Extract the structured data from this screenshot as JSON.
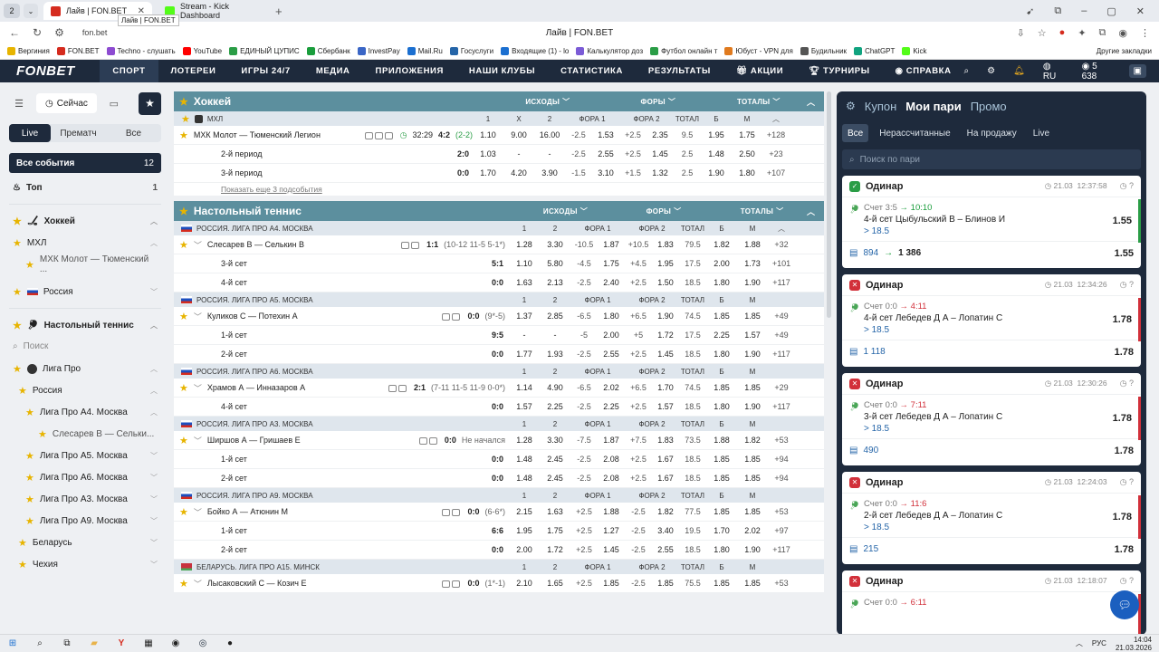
{
  "browser": {
    "workspace_num": "2",
    "tabs": [
      {
        "title": "Лайв | FON.BET",
        "active": true
      },
      {
        "title": "Stream - Kick Dashboard",
        "active": false
      }
    ],
    "tooltip": "Лайв | FON.BET",
    "url": "fon.bet",
    "page_title": "Лайв | FON.BET",
    "bookmarks": [
      "Вергиния",
      "FON.BET",
      "Techno - слушать",
      "YouTube",
      "ЕДИНЫЙ ЦУПИС",
      "Сбербанк",
      "InvestPay",
      "Mail.Ru",
      "Госуслуги",
      "Входящие (1) - lo",
      "Калькулятор доз",
      "Футбол онлайн т",
      "Юбуст - VPN для",
      "Будильник",
      "ChatGPT",
      "Kick"
    ],
    "bookmarks_other": "Другие закладки"
  },
  "site": {
    "logo": "FONBET",
    "nav": [
      "СПОРТ",
      "ЛОТЕРЕИ",
      "ИГРЫ 24/7",
      "МЕДИА",
      "ПРИЛОЖЕНИЯ",
      "НАШИ КЛУБЫ",
      "СТАТИСТИКА",
      "РЕЗУЛЬТАТЫ",
      "АКЦИИ",
      "ТУРНИРЫ",
      "СПРАВКА"
    ],
    "lang": "RU",
    "balance": "5 638"
  },
  "sidebar": {
    "now_label": "Сейчас",
    "tabs": [
      "Live",
      "Прематч",
      "Все"
    ],
    "all_events": {
      "label": "Все события",
      "count": "12"
    },
    "top": {
      "label": "Топ",
      "count": "1"
    },
    "hockey": "Хоккей",
    "khl": "МХЛ",
    "khl_match": "МХК Молот — Тюменский ...",
    "russia": "Россия",
    "tennis": "Настольный теннис",
    "search_placeholder": "Поиск",
    "liga_pro": "Лига Про",
    "russia2": "Россия",
    "leagues": [
      "Лига Про А4. Москва",
      "Лига Про А5. Москва",
      "Лига Про А6. Москва",
      "Лига Про А3. Москва",
      "Лига Про А9. Москва"
    ],
    "sub_match": "Слесарев В — Сельки...",
    "belarus": "Беларусь",
    "czech": "Чехия"
  },
  "hockey": {
    "title": "Хоккей",
    "cols": [
      "ИСХОДЫ",
      "ФОРЫ",
      "ТОТАЛЫ"
    ],
    "league": {
      "name": "МХЛ",
      "heads": [
        "1",
        "X",
        "2",
        "ФОРА 1",
        "",
        "ФОРА 2",
        "",
        "ТОТАЛ",
        "Б",
        "М"
      ]
    },
    "rows": [
      {
        "name": "МХК Молот — Тюменский Легион",
        "time": "32:29",
        "score": "4:2",
        "extra": "(2-2)",
        "odds": [
          "1.10",
          "9.00",
          "16.00",
          "-2.5",
          "1.53",
          "+2.5",
          "2.35",
          "9.5",
          "1.95",
          "1.75"
        ],
        "more": "+128"
      },
      {
        "name": "2-й период",
        "score": "2:0",
        "odds": [
          "1.03",
          "-",
          "-",
          "-2.5",
          "2.55",
          "+2.5",
          "1.45",
          "2.5",
          "1.48",
          "2.50"
        ],
        "more": "+23"
      },
      {
        "name": "3-й период",
        "score": "0:0",
        "odds": [
          "1.70",
          "4.20",
          "3.90",
          "-1.5",
          "3.10",
          "+1.5",
          "1.32",
          "2.5",
          "1.90",
          "1.80"
        ],
        "more": "+107"
      }
    ],
    "more_link": "Показать еще 3 подсобытия"
  },
  "tennis": {
    "title": "Настольный теннис",
    "cols": [
      "ИСХОДЫ",
      "ФОРЫ",
      "ТОТАЛЫ"
    ],
    "heads": [
      "1",
      "2",
      "ФОРА 1",
      "",
      "ФОРА 2",
      "",
      "ТОТАЛ",
      "Б",
      "М"
    ],
    "leagues": [
      {
        "name": "РОССИЯ. ЛИГА ПРО А4. МОСКВА",
        "flag": "ru",
        "rows": [
          {
            "name": "Слесарев В — Селькин В",
            "score": "1:1",
            "extra": "(10-12 11-5 5-1*)",
            "odds": [
              "1.28",
              "3.30",
              "-10.5",
              "1.87",
              "+10.5",
              "1.83",
              "79.5",
              "1.82",
              "1.88"
            ],
            "more": "+32",
            "main": true
          },
          {
            "name": "3-й сет",
            "score": "5:1",
            "odds": [
              "1.10",
              "5.80",
              "-4.5",
              "1.75",
              "+4.5",
              "1.95",
              "17.5",
              "2.00",
              "1.73"
            ],
            "more": "+101"
          },
          {
            "name": "4-й сет",
            "score": "0:0",
            "odds": [
              "1.63",
              "2.13",
              "-2.5",
              "2.40",
              "+2.5",
              "1.50",
              "18.5",
              "1.80",
              "1.90"
            ],
            "more": "+117"
          }
        ]
      },
      {
        "name": "РОССИЯ. ЛИГА ПРО А5. МОСКВА",
        "flag": "ru",
        "rows": [
          {
            "name": "Куликов С — Потехин А",
            "score": "0:0",
            "extra": "(9*-5)",
            "odds": [
              "1.37",
              "2.85",
              "-6.5",
              "1.80",
              "+6.5",
              "1.90",
              "74.5",
              "1.85",
              "1.85"
            ],
            "more": "+49",
            "main": true
          },
          {
            "name": "1-й сет",
            "score": "9:5",
            "odds": [
              "-",
              "-",
              "-5",
              "2.00",
              "+5",
              "1.72",
              "17.5",
              "2.25",
              "1.57"
            ],
            "more": "+49"
          },
          {
            "name": "2-й сет",
            "score": "0:0",
            "odds": [
              "1.77",
              "1.93",
              "-2.5",
              "2.55",
              "+2.5",
              "1.45",
              "18.5",
              "1.80",
              "1.90"
            ],
            "more": "+117"
          }
        ]
      },
      {
        "name": "РОССИЯ. ЛИГА ПРО А6. МОСКВА",
        "flag": "ru",
        "rows": [
          {
            "name": "Храмов А — Инназаров А",
            "score": "2:1",
            "extra": "(7-11 11-5 11-9 0-0*)",
            "odds": [
              "1.14",
              "4.90",
              "-6.5",
              "2.02",
              "+6.5",
              "1.70",
              "74.5",
              "1.85",
              "1.85"
            ],
            "more": "+29",
            "main": true
          },
          {
            "name": "4-й сет",
            "score": "0:0",
            "odds": [
              "1.57",
              "2.25",
              "-2.5",
              "2.25",
              "+2.5",
              "1.57",
              "18.5",
              "1.80",
              "1.90"
            ],
            "more": "+117"
          }
        ]
      },
      {
        "name": "РОССИЯ. ЛИГА ПРО А3. МОСКВА",
        "flag": "ru",
        "rows": [
          {
            "name": "Ширшов А — Гришаев Е",
            "score": "0:0",
            "extra": "Не начался",
            "odds": [
              "1.28",
              "3.30",
              "-7.5",
              "1.87",
              "+7.5",
              "1.83",
              "73.5",
              "1.88",
              "1.82"
            ],
            "more": "+53",
            "main": true
          },
          {
            "name": "1-й сет",
            "score": "0:0",
            "odds": [
              "1.48",
              "2.45",
              "-2.5",
              "2.08",
              "+2.5",
              "1.67",
              "18.5",
              "1.85",
              "1.85"
            ],
            "more": "+94"
          },
          {
            "name": "2-й сет",
            "score": "0:0",
            "odds": [
              "1.48",
              "2.45",
              "-2.5",
              "2.08",
              "+2.5",
              "1.67",
              "18.5",
              "1.85",
              "1.85"
            ],
            "more": "+94"
          }
        ]
      },
      {
        "name": "РОССИЯ. ЛИГА ПРО А9. МОСКВА",
        "flag": "ru",
        "rows": [
          {
            "name": "Бойко А — Атюнин М",
            "score": "0:0",
            "extra": "(6-6*)",
            "odds": [
              "2.15",
              "1.63",
              "+2.5",
              "1.88",
              "-2.5",
              "1.82",
              "77.5",
              "1.85",
              "1.85"
            ],
            "more": "+53",
            "main": true
          },
          {
            "name": "1-й сет",
            "score": "6:6",
            "odds": [
              "1.95",
              "1.75",
              "+2.5",
              "1.27",
              "-2.5",
              "3.40",
              "19.5",
              "1.70",
              "2.02"
            ],
            "more": "+97"
          },
          {
            "name": "2-й сет",
            "score": "0:0",
            "odds": [
              "2.00",
              "1.72",
              "+2.5",
              "1.45",
              "-2.5",
              "2.55",
              "18.5",
              "1.80",
              "1.90"
            ],
            "more": "+117"
          }
        ]
      },
      {
        "name": "БЕЛАРУСЬ. ЛИГА ПРО А15. МИНСК",
        "flag": "by",
        "rows": [
          {
            "name": "Лысаковский С — Козич Е",
            "score": "0:0",
            "extra": "(1*-1)",
            "odds": [
              "2.10",
              "1.65",
              "+2.5",
              "1.85",
              "-2.5",
              "1.85",
              "75.5",
              "1.85",
              "1.85"
            ],
            "more": "+53",
            "main": true
          }
        ]
      }
    ]
  },
  "coupon": {
    "tabs": [
      "Купон",
      "Мои пари",
      "Промо"
    ],
    "filters": [
      "Все",
      "Нерассчитанные",
      "На продажу",
      "Live"
    ],
    "search_placeholder": "Поиск по пари",
    "bets": [
      {
        "status": "win",
        "type": "Одинар",
        "date": "21.03",
        "time": "12:37:58",
        "score_label": "Счет",
        "score_from": "3:5",
        "score_to": "10:10",
        "line": "4-й сет Цыбульский В – Блинов И",
        "value": "> 18.5",
        "coef": "1.55",
        "stake": "894",
        "payout": "1 386",
        "foot_coef": "1.55",
        "color": "#2a9d46"
      },
      {
        "status": "lose",
        "type": "Одинар",
        "date": "21.03",
        "time": "12:34:26",
        "score_label": "Счет",
        "score_from": "0:0",
        "score_to": "4:11",
        "line": "4-й сет Лебедев Д А – Лопатин С",
        "value": "> 18.5",
        "coef": "1.78",
        "stake": "1 118",
        "payout": "",
        "foot_coef": "1.78",
        "color": "#d2303a"
      },
      {
        "status": "lose",
        "type": "Одинар",
        "date": "21.03",
        "time": "12:30:26",
        "score_label": "Счет",
        "score_from": "0:0",
        "score_to": "7:11",
        "line": "3-й сет Лебедев Д А – Лопатин С",
        "value": "> 18.5",
        "coef": "1.78",
        "stake": "490",
        "payout": "",
        "foot_coef": "1.78",
        "color": "#d2303a"
      },
      {
        "status": "lose",
        "type": "Одинар",
        "date": "21.03",
        "time": "12:24:03",
        "score_label": "Счет",
        "score_from": "0:0",
        "score_to": "11:6",
        "line": "2-й сет Лебедев Д А – Лопатин С",
        "value": "> 18.5",
        "coef": "1.78",
        "stake": "215",
        "payout": "",
        "foot_coef": "1.78",
        "color": "#d2303a"
      },
      {
        "status": "lose",
        "type": "Одинар",
        "date": "21.03",
        "time": "12:18:07",
        "score_label": "Счет",
        "score_from": "0:0",
        "score_to": "6:11",
        "line": "",
        "value": "",
        "coef": "",
        "stake": "",
        "payout": "",
        "foot_coef": "",
        "color": "#d2303a"
      }
    ]
  },
  "taskbar": {
    "lang": "РУС",
    "time": "14:04",
    "date": "21.03.2026"
  }
}
